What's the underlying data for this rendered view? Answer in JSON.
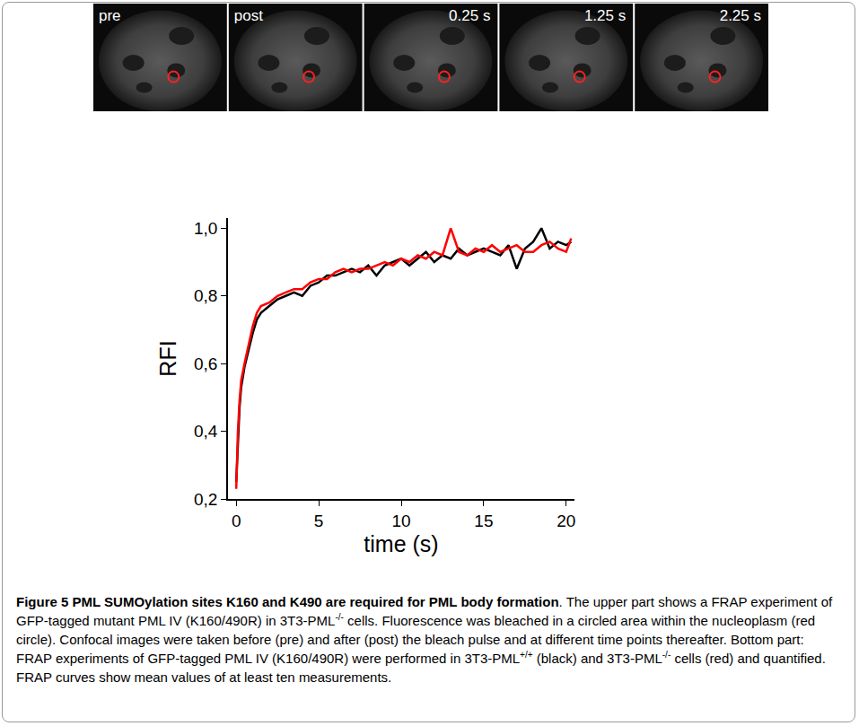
{
  "image_strip": {
    "labels": [
      "pre",
      "post",
      "0.25 s",
      "1.25 s",
      "2.25 s"
    ]
  },
  "chart_data": {
    "type": "line",
    "x_label": "time (s)",
    "y_label": "RFI",
    "x": [
      0,
      0.1,
      0.2,
      0.3,
      0.5,
      0.75,
      1,
      1.25,
      1.5,
      2,
      2.5,
      3,
      3.5,
      4,
      4.5,
      5,
      5.5,
      6,
      6.5,
      7,
      7.5,
      8,
      8.5,
      9,
      9.5,
      10,
      10.5,
      11,
      11.5,
      12,
      12.5,
      13,
      13.5,
      14,
      14.5,
      15,
      15.5,
      16,
      16.5,
      17,
      17.5,
      18,
      18.5,
      19,
      19.5,
      20,
      20.3
    ],
    "series": [
      {
        "color": "#000000",
        "values": [
          0.25,
          0.38,
          0.47,
          0.53,
          0.59,
          0.64,
          0.69,
          0.73,
          0.75,
          0.77,
          0.79,
          0.8,
          0.81,
          0.8,
          0.83,
          0.84,
          0.86,
          0.86,
          0.87,
          0.88,
          0.87,
          0.89,
          0.86,
          0.89,
          0.9,
          0.91,
          0.89,
          0.91,
          0.93,
          0.9,
          0.92,
          0.91,
          0.94,
          0.92,
          0.93,
          0.94,
          0.93,
          0.92,
          0.95,
          0.88,
          0.94,
          0.96,
          1.0,
          0.94,
          0.96,
          0.95,
          0.96
        ]
      },
      {
        "color": "#ff0000",
        "values": [
          0.23,
          0.4,
          0.49,
          0.55,
          0.6,
          0.66,
          0.71,
          0.75,
          0.77,
          0.78,
          0.8,
          0.81,
          0.82,
          0.82,
          0.84,
          0.85,
          0.85,
          0.87,
          0.88,
          0.87,
          0.88,
          0.88,
          0.89,
          0.9,
          0.89,
          0.91,
          0.9,
          0.92,
          0.91,
          0.93,
          0.92,
          1.0,
          0.93,
          0.92,
          0.94,
          0.93,
          0.95,
          0.93,
          0.94,
          0.95,
          0.93,
          0.93,
          0.95,
          0.96,
          0.94,
          0.93,
          0.97
        ]
      }
    ],
    "xlim": [
      -0.5,
      20.5
    ],
    "xticks": [
      0,
      5,
      10,
      15,
      20
    ],
    "ylim": [
      0.2,
      1.03
    ],
    "yticks": [
      {
        "value": 0.2,
        "label": "0,2"
      },
      {
        "value": 0.4,
        "label": "0,4"
      },
      {
        "value": 0.6,
        "label": "0,6"
      },
      {
        "value": 0.8,
        "label": "0,8"
      },
      {
        "value": 1.0,
        "label": "1,0"
      }
    ],
    "grid": false
  },
  "caption": {
    "parts": [
      {
        "text": "Figure 5 PML SUMOylation sites K160 and K490 are required for PML body formation",
        "style": "bold"
      },
      {
        "text": ". The upper part shows a FRAP experiment of GFP-tagged mutant PML IV (K160/490R) in 3T3-PML",
        "style": "normal"
      },
      {
        "text": "-/-",
        "style": "sup"
      },
      {
        "text": " cells. Fluorescence was bleached in a circled area within the nucleoplasm (red circle). Confocal images were taken before (pre) and after (post) the bleach pulse and at different time points thereafter. Bottom part: FRAP experiments of GFP-tagged PML IV (K160/490R) were performed in 3T3-PML",
        "style": "normal"
      },
      {
        "text": "+/+",
        "style": "sup"
      },
      {
        "text": " (black) and 3T3-PML",
        "style": "normal"
      },
      {
        "text": "-/-",
        "style": "sup"
      },
      {
        "text": " cells (red) and quantified. FRAP curves show mean values of at least ten measurements.",
        "style": "normal"
      }
    ]
  }
}
